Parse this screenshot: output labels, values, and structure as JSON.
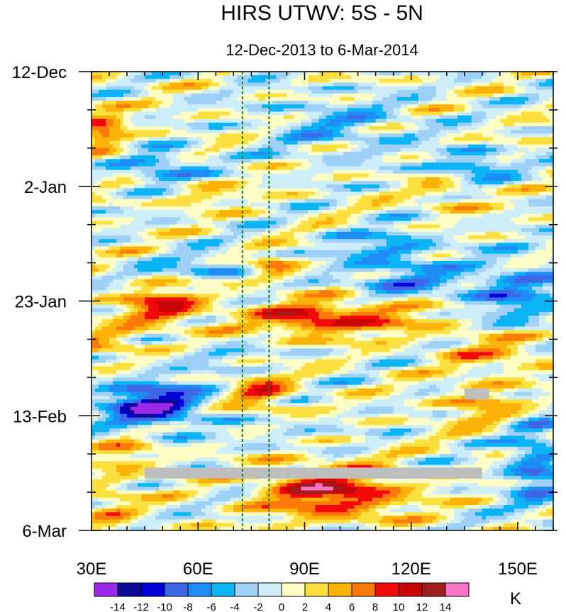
{
  "chart_data": {
    "type": "heatmap",
    "title": "HIRS UTWV: 5S - 5N",
    "subtitle": "12-Dec-2013 to 6-Mar-2014",
    "x_ticks": [
      {
        "value": 30,
        "label": "30E"
      },
      {
        "value": 60,
        "label": "60E"
      },
      {
        "value": 90,
        "label": "90E"
      },
      {
        "value": 120,
        "label": "120E"
      },
      {
        "value": 150,
        "label": "150E"
      }
    ],
    "y_ticks": [
      {
        "value": 0,
        "label": "12-Dec"
      },
      {
        "value": 21,
        "label": "2-Jan"
      },
      {
        "value": 42,
        "label": "23-Jan"
      },
      {
        "value": 63,
        "label": "13-Feb"
      },
      {
        "value": 84,
        "label": "6-Mar"
      }
    ],
    "xlim": [
      30,
      160
    ],
    "ylim_days": [
      0,
      84
    ],
    "reference_longitudes": [
      72.5,
      80
    ],
    "colorbar": {
      "unit": "K",
      "levels": [
        -14,
        -12,
        -10,
        -8,
        -6,
        -4,
        -2,
        0,
        2,
        4,
        6,
        8,
        10,
        12,
        14
      ],
      "labels": [
        "-14",
        "-12",
        "-10",
        "-8",
        "-6",
        "-4",
        "-2",
        "0",
        "2",
        "4",
        "6",
        "8",
        "10",
        "12",
        "14"
      ],
      "colors": [
        "#9a2ae8",
        "#0a0a96",
        "#0000d8",
        "#3e67e6",
        "#1e8cf5",
        "#0ab4f5",
        "#9fd0f7",
        "#cdeef9",
        "#fefdc6",
        "#fde040",
        "#fcb208",
        "#fb7a0a",
        "#f20a0a",
        "#c70606",
        "#9e1d1d",
        "#fb74c8"
      ]
    },
    "missing_color": "#bebebe",
    "missing_bars": [
      {
        "lon0": 45,
        "lon1": 140,
        "day0": 72.5,
        "day1": 74.5
      },
      {
        "lon0": 135,
        "lon1": 142,
        "day0": 58,
        "day1": 60
      }
    ],
    "anomaly_features": [
      {
        "lon": 33,
        "day": 11,
        "slon": 5,
        "sday": 3,
        "amp": 7
      },
      {
        "lon": 50,
        "day": 43,
        "slon": 8,
        "sday": 2.5,
        "amp": 9
      },
      {
        "lon": 100,
        "day": 45,
        "slon": 18,
        "sday": 2.5,
        "amp": 8
      },
      {
        "lon": 90,
        "day": 45.5,
        "slon": 6,
        "sday": 1.5,
        "amp": 4
      },
      {
        "lon": 98,
        "day": 77,
        "slon": 14,
        "sday": 3.5,
        "amp": 11
      },
      {
        "lon": 81,
        "day": 36,
        "slon": 5,
        "sday": 1.5,
        "amp": 8
      },
      {
        "lon": 78,
        "day": 59,
        "slon": 6,
        "sday": 2.5,
        "amp": 7
      },
      {
        "lon": 35,
        "day": 50,
        "slon": 8,
        "sday": 2,
        "amp": 5
      },
      {
        "lon": 40,
        "day": 70,
        "slon": 6,
        "sday": 3,
        "amp": 4
      },
      {
        "lon": 60,
        "day": 22,
        "slon": 8,
        "sday": 2,
        "amp": 4
      },
      {
        "lon": 35,
        "day": 79,
        "slon": 5,
        "sday": 3,
        "amp": 4
      },
      {
        "lon": 145,
        "day": 51,
        "slon": 10,
        "sday": 3,
        "amp": 5
      },
      {
        "lon": 140,
        "day": 61,
        "slon": 8,
        "sday": 3,
        "amp": 5
      },
      {
        "lon": 130,
        "day": 23,
        "slon": 6,
        "sday": 2,
        "amp": 4
      },
      {
        "lon": 47,
        "day": 61,
        "slon": 10,
        "sday": 3,
        "amp": -13
      },
      {
        "lon": 50,
        "day": 18,
        "slon": 8,
        "sday": 2.5,
        "amp": -7
      },
      {
        "lon": 114,
        "day": 33,
        "slon": 10,
        "sday": 3,
        "amp": -6
      },
      {
        "lon": 137,
        "day": 17,
        "slon": 7,
        "sday": 2,
        "amp": -7
      },
      {
        "lon": 64,
        "day": 36,
        "slon": 12,
        "sday": 1.5,
        "amp": -5
      },
      {
        "lon": 150,
        "day": 41,
        "slon": 10,
        "sday": 5,
        "amp": -6
      },
      {
        "lon": 155,
        "day": 72,
        "slon": 6,
        "sday": 6,
        "amp": -7
      },
      {
        "lon": 120,
        "day": 39,
        "slon": 14,
        "sday": 2,
        "amp": -5
      },
      {
        "lon": 100,
        "day": 10,
        "slon": 14,
        "sday": 4,
        "amp": -4
      },
      {
        "lon": 63,
        "day": 52,
        "slon": 10,
        "sday": 1.5,
        "amp": -3
      },
      {
        "lon": 85,
        "day": 66,
        "slon": 10,
        "sday": 2,
        "amp": -2
      }
    ]
  }
}
